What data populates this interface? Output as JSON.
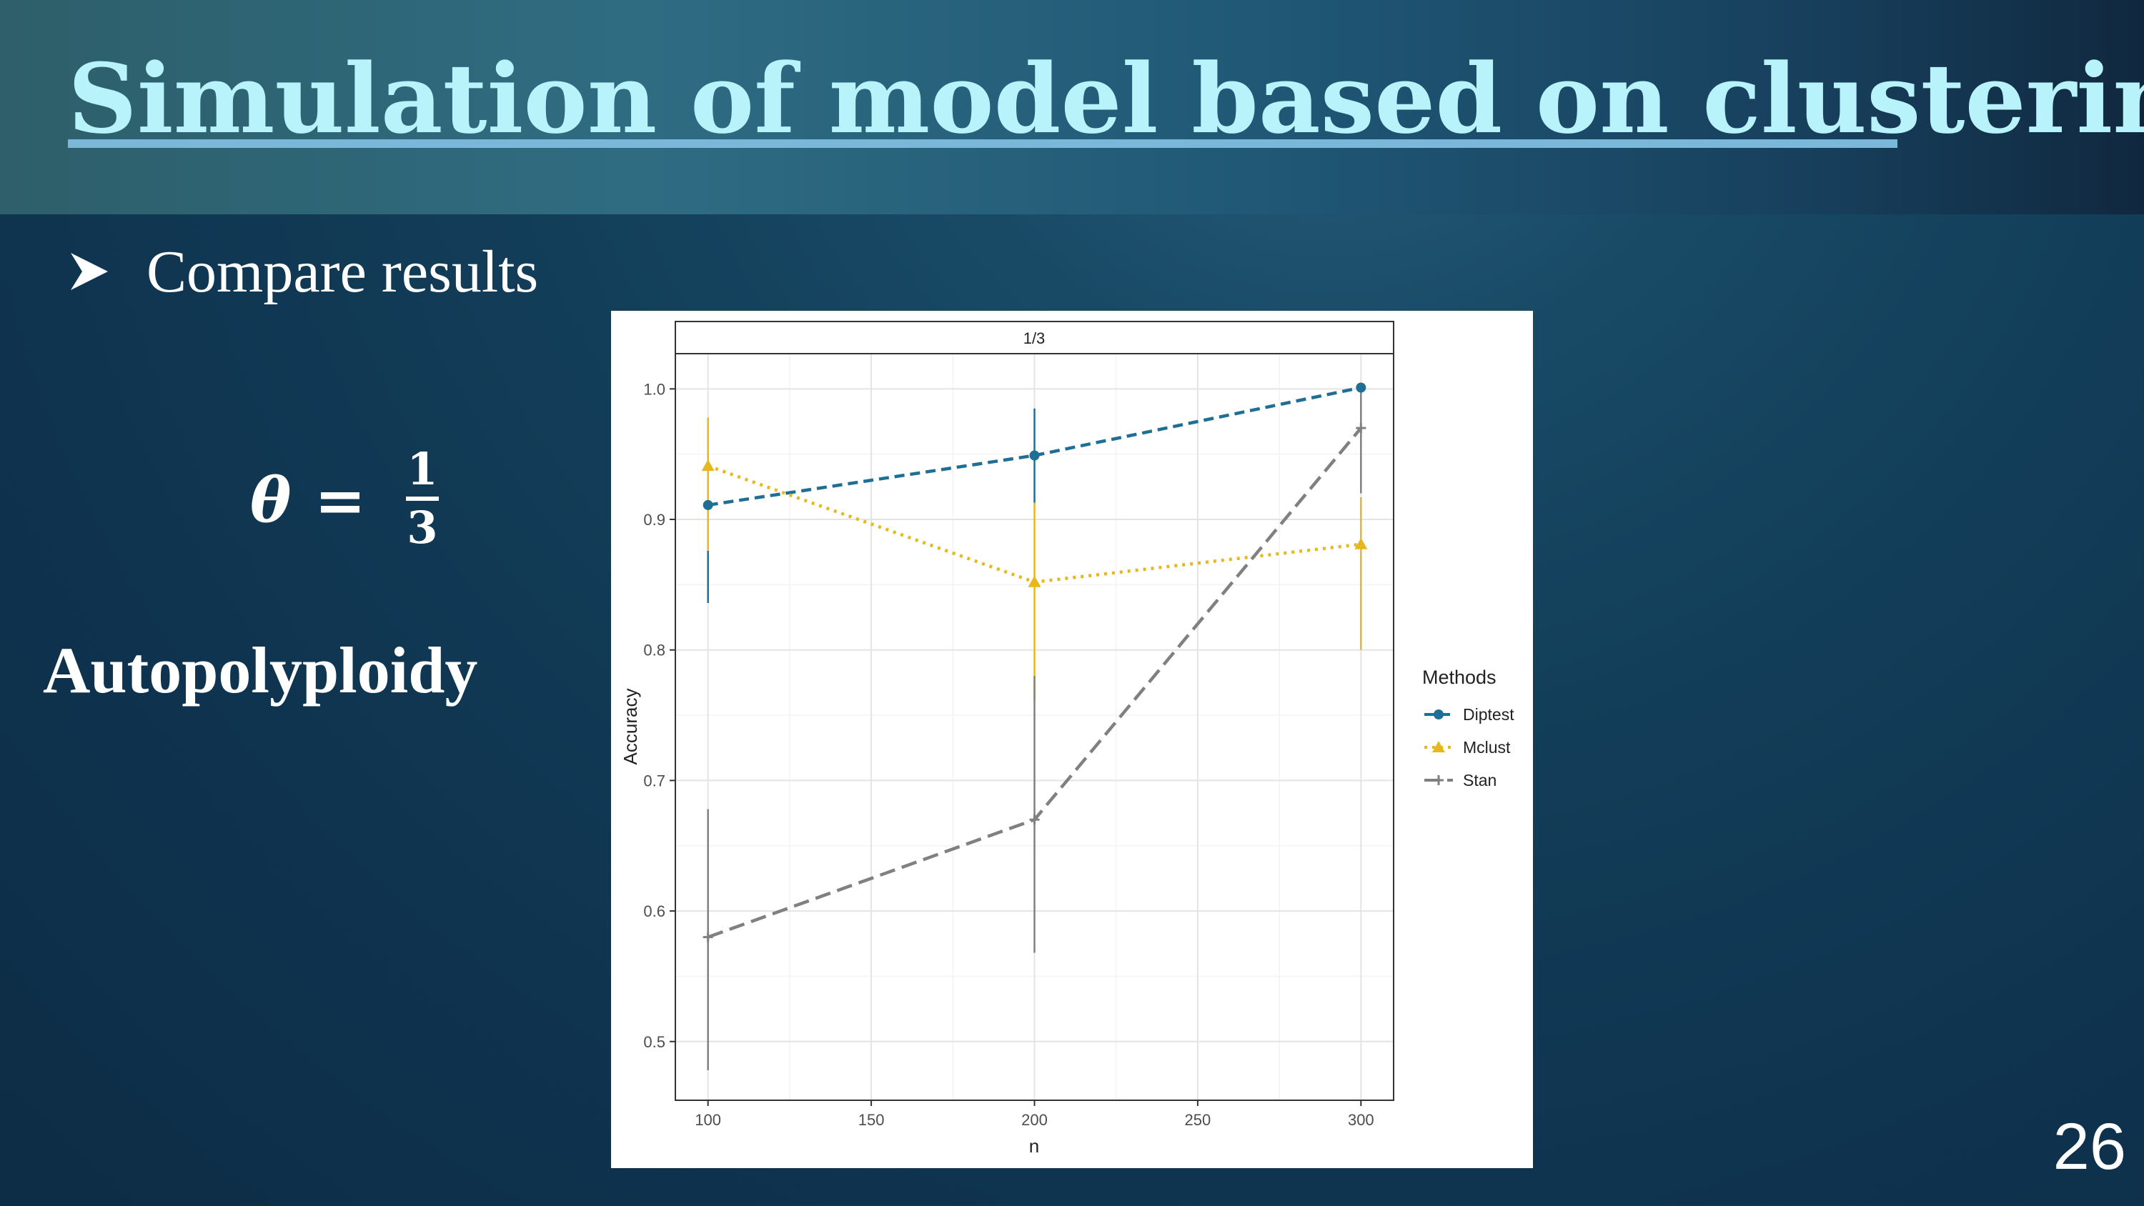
{
  "slide": {
    "title": "Simulation of model based on clustering",
    "bullet": "Compare results",
    "formula": {
      "lhs": "θ",
      "op": "=",
      "numerator": "1",
      "denominator": "3"
    },
    "heading": "Autopolyploidy",
    "page_number": "26"
  },
  "colors": {
    "title": "#b8f2fb",
    "diptest": "#1f6e96",
    "mclust": "#e6b81e",
    "stan": "#808080"
  },
  "chart_data": {
    "type": "line",
    "facet_label": "1/3",
    "xlabel": "n",
    "ylabel": "Accuracy",
    "x": [
      100,
      200,
      300
    ],
    "xticks": [
      "100",
      "150",
      "200",
      "250",
      "300"
    ],
    "yticks": [
      "0.5",
      "0.6",
      "0.7",
      "0.8",
      "0.9",
      "1.0"
    ],
    "xlim": [
      90,
      310
    ],
    "ylim": [
      0.455,
      1.027
    ],
    "grid": true,
    "legend": {
      "title": "Methods",
      "position": "right"
    },
    "series": [
      {
        "name": "Diptest",
        "values": [
          0.911,
          0.949,
          1.001
        ],
        "lower": [
          0.836,
          0.912,
          1.001
        ],
        "upper": [
          0.876,
          0.985,
          1.001
        ],
        "marker": "circle",
        "dash": "dashed"
      },
      {
        "name": "Mclust",
        "values": [
          0.941,
          0.852,
          0.881
        ],
        "lower": [
          0.876,
          0.762,
          0.8
        ],
        "upper": [
          0.978,
          0.913,
          0.917
        ],
        "marker": "triangle",
        "dash": "dotted"
      },
      {
        "name": "Stan",
        "values": [
          0.58,
          0.67,
          0.97
        ],
        "lower": [
          0.478,
          0.568,
          0.92
        ],
        "upper": [
          0.678,
          0.78,
          1.001
        ],
        "marker": "plus",
        "dash": "longdash"
      }
    ]
  }
}
